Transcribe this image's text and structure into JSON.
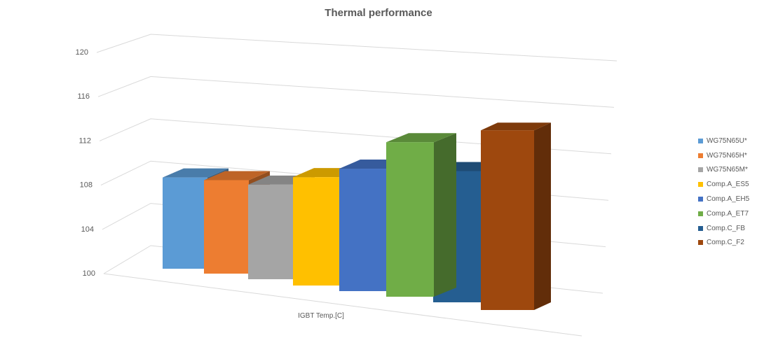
{
  "chart_data": {
    "type": "bar",
    "title": "Thermal performance",
    "categories": [
      "IGBT Temp.[C]"
    ],
    "series": [
      {
        "name": "WG75N65U*",
        "color": "#5B9BD5",
        "values": [
          108.2
        ]
      },
      {
        "name": "WG75N65H*",
        "color": "#ED7D31",
        "values": [
          108.3
        ]
      },
      {
        "name": "WG75N65M*",
        "color": "#A5A5A5",
        "values": [
          108.3
        ]
      },
      {
        "name": "Comp.A_ES5",
        "color": "#FFC000",
        "values": [
          109.4
        ]
      },
      {
        "name": "Comp.A_EH5",
        "color": "#4472C4",
        "values": [
          110.5
        ]
      },
      {
        "name": "Comp.A_ET7",
        "color": "#70AD47",
        "values": [
          113.1
        ]
      },
      {
        "name": "Comp.C_FB",
        "color": "#255E91",
        "values": [
          111.0
        ]
      },
      {
        "name": "Comp.C_F2",
        "color": "#9E480E",
        "values": [
          114.9
        ]
      }
    ],
    "ylim": [
      100,
      120
    ],
    "yticks": [
      "100",
      "104",
      "108",
      "112",
      "116",
      "120"
    ],
    "xlabel": "",
    "ylabel": "",
    "grid": true,
    "legend": "right"
  }
}
